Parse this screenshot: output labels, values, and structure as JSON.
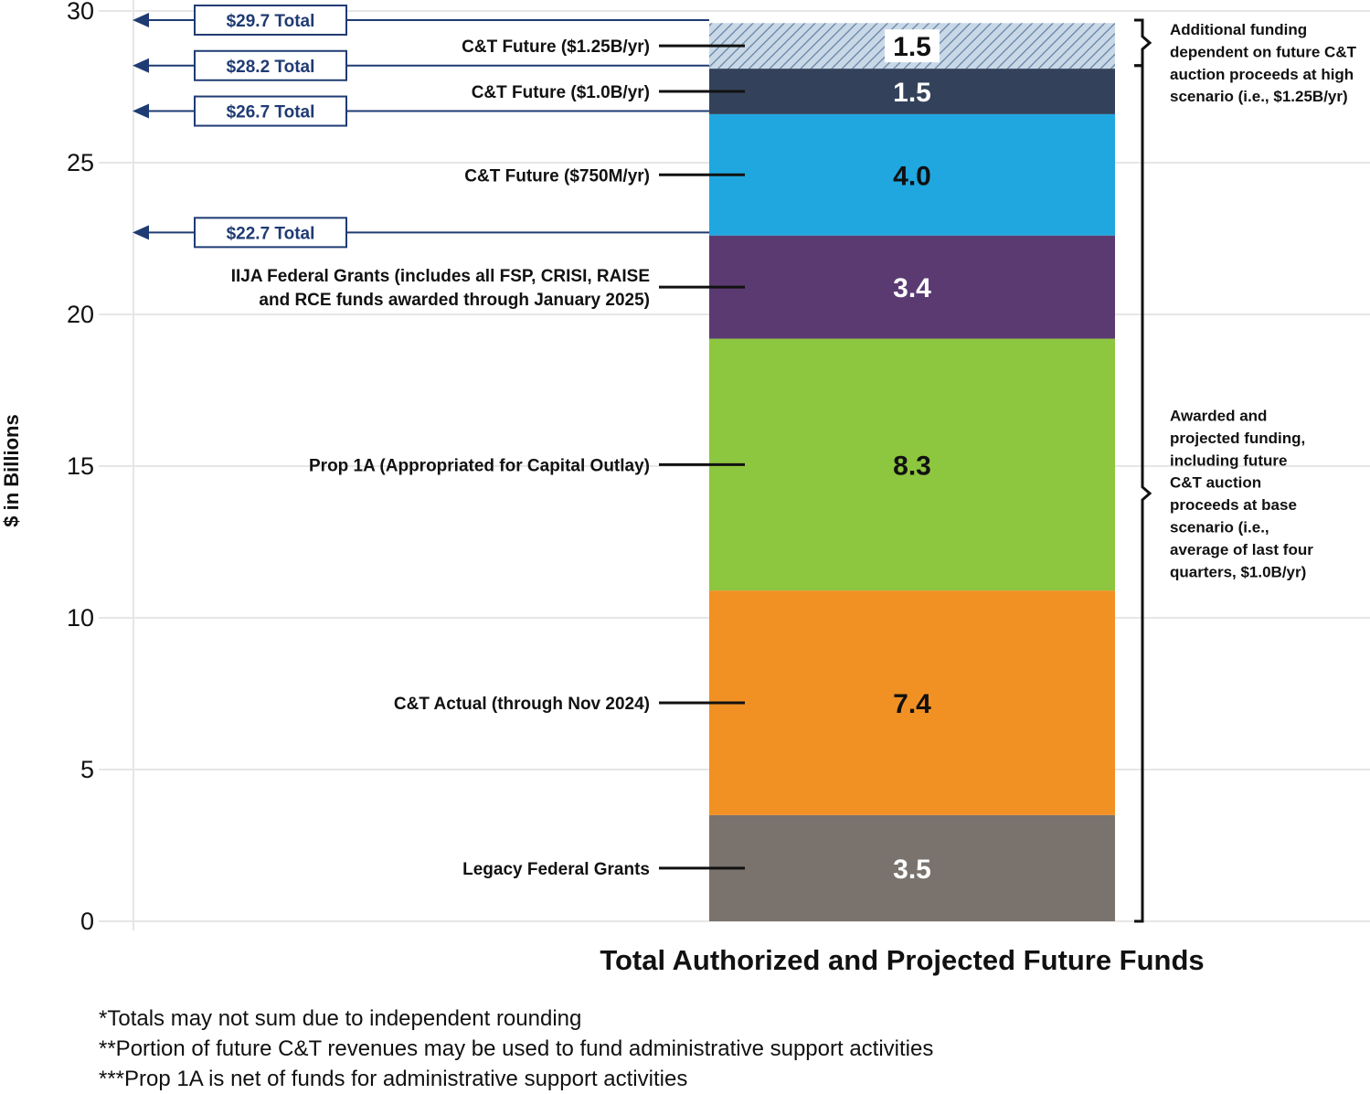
{
  "chart_data": {
    "type": "bar",
    "stacked": true,
    "xlabel": "Total Authorized and Projected Future Funds",
    "ylabel": "$ in Billions",
    "ylim": [
      0,
      30
    ],
    "yticks": [
      0,
      5,
      10,
      15,
      20,
      25,
      30
    ],
    "grid": true,
    "series": [
      {
        "name": "Legacy Federal Grants",
        "value": 3.5,
        "label": "3.5",
        "color": "#7a726c",
        "label_color": "#ffffff"
      },
      {
        "name": "C&T Actual (through Nov 2024)",
        "value": 7.4,
        "label": "7.4",
        "color": "#f29123",
        "label_color": "#111111"
      },
      {
        "name": "Prop 1A (Appropriated for Capital Outlay)",
        "value": 8.3,
        "label": "8.3",
        "color": "#8dc63f",
        "label_color": "#111111"
      },
      {
        "name": "IIJA Federal Grants (includes all FSP, CRISI, RAISE and RCE funds awarded through January 2025)",
        "name_lines": [
          "IIJA Federal Grants (includes all FSP, CRISI, RAISE",
          "and RCE funds awarded through January 2025)"
        ],
        "value": 3.4,
        "label": "3.4",
        "color": "#5b3a72",
        "label_color": "#ffffff"
      },
      {
        "name": "C&T Future ($750M/yr)",
        "value": 4.0,
        "label": "4.0",
        "color": "#20a7e0",
        "label_color": "#111111"
      },
      {
        "name": "C&T Future ($1.0B/yr)",
        "value": 1.5,
        "label": "1.5",
        "color": "#33425a",
        "label_color": "#ffffff"
      },
      {
        "name": "C&T Future ($1.25B/yr)",
        "value": 1.5,
        "label": "1.5",
        "color": "#c9d8e6",
        "label_color": "#111111",
        "hatched": true
      }
    ],
    "totals": [
      {
        "label": "$29.7 Total",
        "value": 29.7
      },
      {
        "label": "$28.2 Total",
        "value": 28.2
      },
      {
        "label": "$26.7 Total",
        "value": 26.7
      },
      {
        "label": "$22.7 Total",
        "value": 22.7
      }
    ],
    "brackets": [
      {
        "from": 28.2,
        "to": 29.7,
        "text_lines": [
          "Additional funding",
          "dependent on future C&T",
          "auction proceeds at high",
          "scenario (i.e., $1.25B/yr)"
        ]
      },
      {
        "from": 0,
        "to": 28.2,
        "text_lines": [
          "Awarded and",
          "projected funding,",
          "including future",
          "C&T auction",
          "proceeds at base",
          "scenario (i.e.,",
          "average of last four",
          "quarters, $1.0B/yr)"
        ]
      }
    ],
    "colors": {
      "arrow": "#1f3b73",
      "grid": "#e6e6e6"
    }
  },
  "footnotes": [
    "*Totals may not sum due to independent rounding",
    "**Portion of future C&T revenues may be used to fund administrative support activities",
    "***Prop 1A is net of funds for administrative support activities"
  ]
}
